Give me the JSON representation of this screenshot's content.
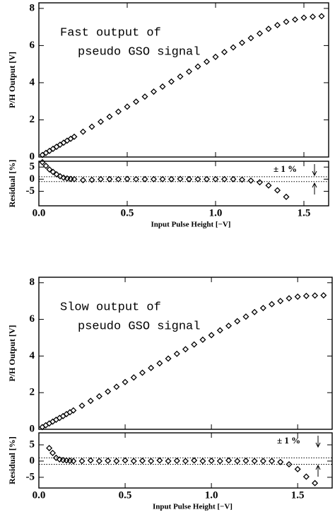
{
  "chart_data": [
    {
      "type": "scatter",
      "color": "#000000",
      "ylabel": "P/H Output [V]",
      "annotation": [
        "Fast output of",
        "pseudo GSO signal"
      ],
      "x": [
        0.02,
        0.04,
        0.06,
        0.08,
        0.1,
        0.12,
        0.14,
        0.16,
        0.18,
        0.2,
        0.25,
        0.3,
        0.35,
        0.4,
        0.45,
        0.5,
        0.55,
        0.6,
        0.65,
        0.7,
        0.75,
        0.8,
        0.85,
        0.9,
        0.95,
        1.0,
        1.05,
        1.1,
        1.15,
        1.2,
        1.25,
        1.3,
        1.35,
        1.4,
        1.45,
        1.5,
        1.55,
        1.6
      ],
      "values": [
        0.11,
        0.22,
        0.33,
        0.44,
        0.55,
        0.66,
        0.77,
        0.88,
        0.98,
        1.09,
        1.36,
        1.63,
        1.9,
        2.17,
        2.44,
        2.71,
        2.98,
        3.25,
        3.52,
        3.79,
        4.06,
        4.33,
        4.6,
        4.87,
        5.13,
        5.39,
        5.65,
        5.9,
        6.15,
        6.4,
        6.65,
        6.9,
        7.1,
        7.28,
        7.4,
        7.5,
        7.55,
        7.58
      ],
      "xlim": [
        0,
        1.64
      ],
      "ylim": [
        0,
        8.3
      ],
      "xticks": [
        0,
        0.5,
        1,
        1.5
      ],
      "yticks": [
        0,
        2,
        4,
        6,
        8
      ]
    },
    {
      "type": "scatter",
      "color": "#000000",
      "ylabel": "Residual [%]",
      "xlabel": "Input Pulse Height [−V]",
      "annotation": [
        "± 1 %"
      ],
      "bands": [
        -1,
        1
      ],
      "x": [
        0.02,
        0.04,
        0.06,
        0.08,
        0.1,
        0.12,
        0.14,
        0.16,
        0.18,
        0.2,
        0.25,
        0.3,
        0.35,
        0.4,
        0.45,
        0.5,
        0.55,
        0.6,
        0.65,
        0.7,
        0.75,
        0.8,
        0.85,
        0.9,
        0.95,
        1.0,
        1.05,
        1.1,
        1.15,
        1.2,
        1.25,
        1.3,
        1.35,
        1.4
      ],
      "values": [
        7,
        5.5,
        4,
        3,
        2,
        1.2,
        0.6,
        0.3,
        0.1,
        0,
        -0.4,
        -0.3,
        0,
        0,
        0,
        0.1,
        0,
        0,
        0,
        0,
        0,
        0.1,
        0,
        0,
        0,
        0,
        0,
        0,
        -0.2,
        -0.6,
        -1.3,
        -2.6,
        -4.6,
        -7.3
      ],
      "xlim": [
        0,
        1.64
      ],
      "ylim": [
        -11,
        7.4
      ],
      "xticks": [
        {
          "value": 0,
          "label": "0.0"
        },
        0.5,
        {
          "value": 1,
          "label": "1.0"
        },
        1.5
      ],
      "yticks": [
        -5,
        0,
        5
      ]
    },
    {
      "type": "scatter",
      "color": "#000000",
      "ylabel": "P/H Output [V]",
      "annotation": [
        "Slow output of",
        "pseudo GSO signal"
      ],
      "x": [
        0.02,
        0.04,
        0.06,
        0.08,
        0.1,
        0.12,
        0.14,
        0.16,
        0.18,
        0.2,
        0.25,
        0.3,
        0.35,
        0.4,
        0.45,
        0.5,
        0.55,
        0.6,
        0.65,
        0.7,
        0.75,
        0.8,
        0.85,
        0.9,
        0.95,
        1.0,
        1.05,
        1.1,
        1.15,
        1.2,
        1.25,
        1.3,
        1.35,
        1.4,
        1.45,
        1.5,
        1.55,
        1.6,
        1.65
      ],
      "values": [
        0.12,
        0.22,
        0.32,
        0.42,
        0.52,
        0.62,
        0.72,
        0.83,
        0.93,
        1.03,
        1.29,
        1.55,
        1.8,
        2.06,
        2.32,
        2.58,
        2.83,
        3.09,
        3.35,
        3.6,
        3.86,
        4.12,
        4.37,
        4.63,
        4.89,
        5.14,
        5.4,
        5.65,
        5.9,
        6.15,
        6.4,
        6.62,
        6.83,
        7.0,
        7.15,
        7.24,
        7.28,
        7.3,
        7.31
      ],
      "xlim": [
        0,
        1.7
      ],
      "ylim": [
        0,
        8.3
      ],
      "xticks": [
        0,
        0.5,
        1,
        1.5
      ],
      "yticks": [
        0,
        2,
        4,
        6,
        8
      ]
    },
    {
      "type": "scatter",
      "color": "#000000",
      "ylabel": "Residual [%]",
      "xlabel": "Input Pulse Height [−V]",
      "annotation": [
        "± 1 %"
      ],
      "bands": [
        -1,
        1
      ],
      "x": [
        0.06,
        0.08,
        0.1,
        0.12,
        0.14,
        0.16,
        0.18,
        0.2,
        0.25,
        0.3,
        0.35,
        0.4,
        0.45,
        0.5,
        0.55,
        0.6,
        0.65,
        0.7,
        0.75,
        0.8,
        0.85,
        0.9,
        0.95,
        1.0,
        1.05,
        1.1,
        1.15,
        1.2,
        1.25,
        1.3,
        1.35,
        1.4,
        1.45,
        1.5,
        1.55,
        1.6
      ],
      "values": [
        4,
        2.5,
        1,
        0.5,
        0.3,
        0.2,
        0.1,
        0,
        0,
        0.2,
        0,
        0.1,
        0,
        0.2,
        0,
        0.1,
        0,
        0.2,
        0,
        0.1,
        0,
        0.2,
        0,
        0.1,
        0,
        0.2,
        0,
        0.1,
        0,
        0,
        0,
        -0.3,
        -1,
        -2.5,
        -4.8,
        -6.8
      ],
      "xlim": [
        0,
        1.7
      ],
      "ylim": [
        -8.3,
        8.7
      ],
      "xticks": [
        {
          "value": 0,
          "label": "0.0"
        },
        0.5,
        {
          "value": 1,
          "label": "1.0"
        },
        1.5
      ],
      "yticks": [
        -5,
        0,
        5
      ]
    }
  ]
}
